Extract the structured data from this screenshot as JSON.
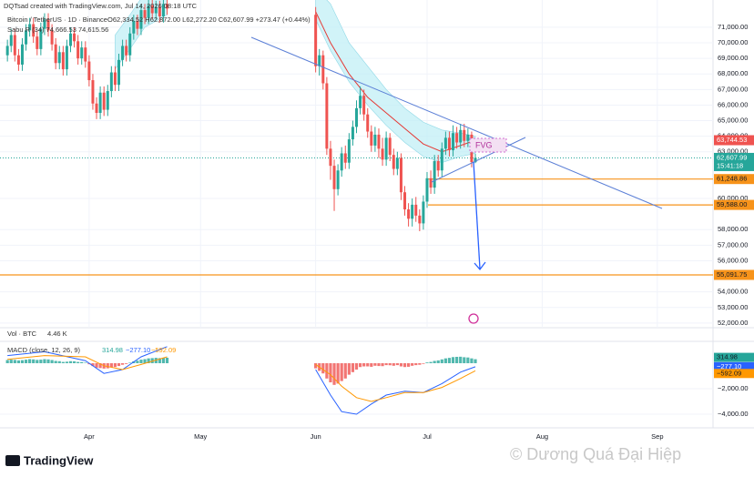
{
  "chart_data": {
    "type": "candlestick",
    "credit": "DQTsad created with TradingView.com, Jul 14, 2026 08:18 UTC",
    "symbol": "Bitcoin / TetherUS · 1D · Binance",
    "ohlc_text": "O62,334.52 H62,872.00 L62,272.20 C62,607.99 +273.47 (+0.44%)",
    "indicator_label": "Sabu R (34) 74,666.53 74,615.56",
    "volume_label": "Vol · BTC",
    "volume_value": "4.46 K",
    "annotation": "FVG",
    "brand": "TradingView",
    "watermark": "© Dương Quá Đại Hiệp",
    "countdown": "15:41:18",
    "up_color": "#26a69a",
    "down_color": "#ef5350",
    "x": [
      "2026-03-10",
      "2026-03-11",
      "2026-03-12",
      "2026-03-13",
      "2026-03-14",
      "2026-03-15",
      "2026-03-16",
      "2026-03-17",
      "2026-03-18",
      "2026-03-19",
      "2026-03-20",
      "2026-03-21",
      "2026-03-22",
      "2026-03-23",
      "2026-03-24",
      "2026-03-25",
      "2026-03-26",
      "2026-03-27",
      "2026-03-28",
      "2026-03-29",
      "2026-03-30",
      "2026-03-31",
      "2026-04-01",
      "2026-04-02",
      "2026-04-03",
      "2026-04-04",
      "2026-04-05",
      "2026-04-06",
      "2026-04-07",
      "2026-04-08",
      "2026-04-09",
      "2026-04-10",
      "2026-04-11",
      "2026-04-12",
      "2026-04-13",
      "2026-04-14",
      "2026-04-15",
      "2026-04-16",
      "2026-04-17",
      "2026-04-18",
      "2026-04-19",
      "2026-04-20",
      "2026-04-21",
      "2026-04-22",
      "2026-06-01",
      "2026-06-02",
      "2026-06-03",
      "2026-06-04",
      "2026-06-05",
      "2026-06-06",
      "2026-06-07",
      "2026-06-08",
      "2026-06-09",
      "2026-06-10",
      "2026-06-11",
      "2026-06-12",
      "2026-06-13",
      "2026-06-14",
      "2026-06-15",
      "2026-06-16",
      "2026-06-17",
      "2026-06-18",
      "2026-06-19",
      "2026-06-20",
      "2026-06-21",
      "2026-06-22",
      "2026-06-23",
      "2026-06-24",
      "2026-06-25",
      "2026-06-26",
      "2026-06-27",
      "2026-06-28",
      "2026-06-29",
      "2026-06-30",
      "2026-07-01",
      "2026-07-02",
      "2026-07-03",
      "2026-07-04",
      "2026-07-05",
      "2026-07-06",
      "2026-07-07",
      "2026-07-08",
      "2026-07-09",
      "2026-07-10",
      "2026-07-11",
      "2026-07-12",
      "2026-07-13",
      "2026-07-14"
    ],
    "open": [
      69200,
      69800,
      70500,
      69200,
      68600,
      69900,
      70800,
      71200,
      70400,
      69600,
      70900,
      71500,
      70800,
      69900,
      68700,
      69400,
      68300,
      69800,
      70600,
      70100,
      69000,
      69700,
      68800,
      67600,
      66100,
      65500,
      66800,
      65700,
      66900,
      68100,
      67300,
      68900,
      69800,
      69200,
      70600,
      71400,
      70900,
      72100,
      71600,
      72400,
      71900,
      72300,
      71700,
      72500,
      71800,
      68500,
      69200,
      67400,
      63200,
      62100,
      60600,
      61800,
      62900,
      62300,
      63800,
      64600,
      65800,
      66600,
      65400,
      64300,
      63400,
      64100,
      63200,
      62500,
      63900,
      62800,
      61900,
      62600,
      60400,
      59300,
      58700,
      59600,
      58900,
      58400,
      59800,
      61300,
      60700,
      62400,
      61800,
      63200,
      63900,
      63100,
      64200,
      63600,
      64400,
      63700,
      64100,
      62334.52
    ],
    "high": [
      70200,
      70900,
      70900,
      69600,
      70300,
      71200,
      71600,
      71600,
      70800,
      71300,
      71900,
      71900,
      71200,
      70300,
      69800,
      69800,
      70200,
      71000,
      71000,
      70500,
      70100,
      70100,
      69200,
      68000,
      66500,
      67200,
      67200,
      67300,
      68500,
      68500,
      69300,
      70200,
      70200,
      71000,
      71800,
      71800,
      72500,
      72500,
      72800,
      72800,
      72700,
      72700,
      72900,
      72900,
      72300,
      69600,
      69500,
      67800,
      63700,
      62500,
      62200,
      63300,
      63400,
      64200,
      65000,
      66300,
      67200,
      67000,
      65800,
      64700,
      64600,
      64500,
      63900,
      64300,
      64200,
      63200,
      63000,
      62900,
      60800,
      59700,
      60000,
      60100,
      59300,
      60200,
      61700,
      61800,
      62800,
      62800,
      63600,
      64300,
      64300,
      64700,
      64600,
      64800,
      64800,
      64500,
      64300,
      62872
    ],
    "low": [
      68800,
      69400,
      68800,
      68200,
      68200,
      69500,
      70400,
      70000,
      69200,
      69200,
      70500,
      70400,
      69500,
      68300,
      68300,
      67900,
      67900,
      69400,
      69700,
      68600,
      68600,
      68400,
      67200,
      65700,
      65100,
      65100,
      65300,
      65300,
      66500,
      66900,
      66900,
      68500,
      68800,
      68800,
      70200,
      70500,
      70500,
      71200,
      71200,
      71500,
      71500,
      71300,
      71300,
      71800,
      68100,
      67900,
      67000,
      62800,
      61200,
      59200,
      60200,
      61400,
      61900,
      61900,
      63400,
      64200,
      65400,
      65000,
      63900,
      63000,
      63000,
      62600,
      62100,
      62100,
      62400,
      61500,
      61500,
      59900,
      58900,
      58200,
      58200,
      58500,
      57900,
      58000,
      59400,
      60300,
      60300,
      61400,
      61400,
      62800,
      62700,
      62700,
      63200,
      63200,
      63300,
      63300,
      62000,
      62272.2
    ],
    "close": [
      69800,
      70500,
      69200,
      68600,
      69900,
      70800,
      71200,
      70400,
      69600,
      70900,
      71500,
      70800,
      69900,
      68700,
      69400,
      68300,
      69800,
      70600,
      70100,
      69000,
      69700,
      68800,
      67600,
      66100,
      65500,
      66800,
      65700,
      66900,
      68100,
      67300,
      68900,
      69800,
      69200,
      70600,
      71400,
      70900,
      72100,
      71600,
      72400,
      71900,
      72300,
      71700,
      72500,
      72200,
      68500,
      69200,
      67400,
      63200,
      62100,
      60600,
      61800,
      62900,
      62300,
      63800,
      64600,
      65800,
      66600,
      65400,
      64300,
      63400,
      64100,
      63200,
      62500,
      63900,
      62800,
      61900,
      62600,
      60400,
      59300,
      58700,
      59600,
      58900,
      58400,
      59800,
      61300,
      60700,
      62400,
      61800,
      63200,
      63900,
      63100,
      64200,
      63600,
      64400,
      63700,
      64100,
      62335,
      62607.99
    ],
    "xlim": [
      "2026-03-08",
      "2026-09-16"
    ],
    "xticks": [
      {
        "value": "2026-04-01",
        "label": "Apr"
      },
      {
        "value": "2026-05-01",
        "label": "May"
      },
      {
        "value": "2026-06-01",
        "label": "Jun"
      },
      {
        "value": "2026-07-01",
        "label": "Jul"
      },
      {
        "value": "2026-08-01",
        "label": "Aug"
      },
      {
        "value": "2026-09-01",
        "label": "Sep"
      }
    ],
    "ylim": [
      51700,
      72750
    ],
    "yticks": [
      {
        "value": 71000,
        "label": "71,000.00"
      },
      {
        "value": 70000,
        "label": "70,000.00"
      },
      {
        "value": 69000,
        "label": "69,000.00"
      },
      {
        "value": 68000,
        "label": "68,000.00"
      },
      {
        "value": 67000,
        "label": "67,000.00"
      },
      {
        "value": 66000,
        "label": "66,000.00"
      },
      {
        "value": 65000,
        "label": "65,000.00"
      },
      {
        "value": 64000,
        "label": "64,000.00"
      },
      {
        "value": 63000,
        "label": "63,000.00"
      },
      {
        "value": 60000,
        "label": "60,000.00"
      },
      {
        "value": 58000,
        "label": "58,000.00"
      },
      {
        "value": 57000,
        "label": "57,000.00"
      },
      {
        "value": 56000,
        "label": "56,000.00"
      },
      {
        "value": 54000,
        "label": "54,000.00"
      },
      {
        "value": 53000,
        "label": "53,000.00"
      },
      {
        "value": 52000,
        "label": "52,000.00"
      }
    ],
    "price_tags": {
      "values": [
        63744.53,
        62607.99,
        61248.86,
        59588.0,
        55091.75
      ],
      "value_labels": [
        "63,744.53",
        "62,607.99",
        "61,248.86",
        "59,588.00",
        "55,091.75"
      ],
      "colors": [
        "#ef5350",
        "#26a69a",
        "#f7931a",
        "#f7931a",
        "#f7931a"
      ]
    },
    "ma": {
      "color": "#e53935",
      "x": [
        "2026-06-01",
        "2026-06-05",
        "2026-06-10",
        "2026-06-15",
        "2026-06-20",
        "2026-06-25",
        "2026-06-30",
        "2026-07-05",
        "2026-07-10",
        "2026-07-14"
      ],
      "values": [
        72000,
        70000,
        68000,
        66500,
        65500,
        64500,
        63500,
        63000,
        63400,
        63744.53
      ]
    },
    "band": {
      "color": "#bdeef5",
      "x": [
        "2026-04-08",
        "2026-04-12",
        "2026-04-16",
        "2026-04-22",
        "2026-05-15",
        "2026-06-01",
        "2026-06-05",
        "2026-06-10",
        "2026-06-15",
        "2026-06-20",
        "2026-06-25",
        "2026-06-30",
        "2026-07-05",
        "2026-07-10",
        "2026-07-14"
      ],
      "upper": [
        70500,
        71800,
        73200,
        74000,
        null,
        73500,
        72500,
        70000,
        68500,
        67000,
        65800,
        64900,
        64400,
        64200,
        64000
      ],
      "lower": [
        68300,
        69600,
        71000,
        71800,
        null,
        71500,
        69500,
        67500,
        66000,
        64700,
        63600,
        62700,
        62300,
        62700,
        62900
      ]
    },
    "macd": {
      "label": "MACD (close, 12, 26, 9)",
      "ylim": [
        -5070,
        1500
      ],
      "yticks": [
        {
          "value": -2000,
          "label": "−2,000.00"
        },
        {
          "value": -4000,
          "label": "−4,000.00"
        }
      ],
      "histogram": [
        250,
        280,
        260,
        220,
        240,
        280,
        320,
        300,
        260,
        280,
        320,
        300,
        250,
        180,
        160,
        100,
        120,
        160,
        150,
        100,
        90,
        40,
        -80,
        -220,
        -350,
        -380,
        -420,
        -400,
        -330,
        -300,
        -220,
        -120,
        -60,
        40,
        150,
        200,
        280,
        320,
        380,
        400,
        420,
        400,
        420,
        430,
        -400,
        -600,
        -800,
        -1200,
        -1500,
        -1700,
        -1600,
        -1400,
        -1200,
        -900,
        -700,
        -500,
        -300,
        -250,
        -250,
        -280,
        -200,
        -220,
        -230,
        -150,
        -160,
        -200,
        -150,
        -250,
        -300,
        -280,
        -200,
        -150,
        -120,
        -50,
        60,
        100,
        180,
        220,
        300,
        380,
        420,
        480,
        500,
        510,
        470,
        450,
        380,
        314.98
      ],
      "hist_up": "#26a69a",
      "hist_down": "#ef5350",
      "line_x": [
        "2026-03-10",
        "2026-03-20",
        "2026-03-31",
        "2026-04-05",
        "2026-04-10",
        "2026-04-15",
        "2026-04-22",
        "2026-05-15",
        "2026-06-01",
        "2026-06-05",
        "2026-06-08",
        "2026-06-12",
        "2026-06-16",
        "2026-06-20",
        "2026-06-25",
        "2026-06-30",
        "2026-07-05",
        "2026-07-10",
        "2026-07-14"
      ],
      "macd_color": "#2962ff",
      "macd_values": [
        600,
        900,
        200,
        -800,
        -500,
        500,
        1300,
        null,
        -500,
        -2500,
        -3800,
        -4000,
        -3200,
        -2500,
        -2200,
        -2300,
        -1600,
        -700,
        -277.1
      ],
      "signal_color": "#ff9800",
      "signal_values": [
        300,
        600,
        500,
        -200,
        -500,
        -100,
        500,
        null,
        -100,
        -900,
        -1800,
        -2700,
        -3000,
        -2700,
        -2300,
        -2300,
        -1900,
        -1200,
        -592.09
      ],
      "tags": {
        "values": [
          314.98,
          -277.1,
          -592.09
        ],
        "value_labels": [
          "314.98",
          "−277.10",
          "−592.09"
        ],
        "colors": [
          "#26a69a",
          "#2962ff",
          "#ff9800"
        ]
      }
    }
  }
}
